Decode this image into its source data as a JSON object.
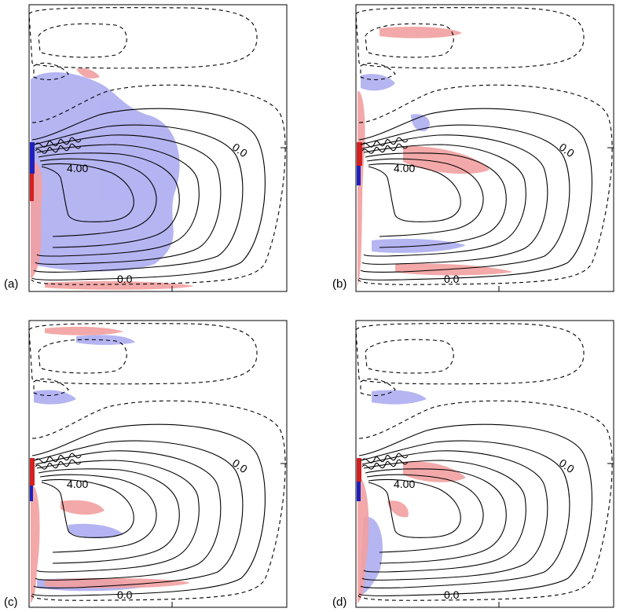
{
  "figure": {
    "panels": [
      {
        "id": "a",
        "label": "(a)",
        "contour_labels": [
          "4.00",
          "0.0",
          "0.0"
        ]
      },
      {
        "id": "b",
        "label": "(b)",
        "contour_labels": [
          "4.00",
          "0.0",
          "0.0"
        ]
      },
      {
        "id": "c",
        "label": "(c)",
        "contour_labels": [
          "4.00",
          "0.0",
          "0.0"
        ]
      },
      {
        "id": "d",
        "label": "(d)",
        "contour_labels": [
          "4.00",
          "0.0",
          "0.0"
        ]
      }
    ],
    "colors": {
      "positive_shading": "#f2a0a0",
      "strong_positive": "#d42020",
      "negative_shading": "#a8a8f0",
      "strong_negative": "#2020c0",
      "contour": "#000000"
    }
  }
}
